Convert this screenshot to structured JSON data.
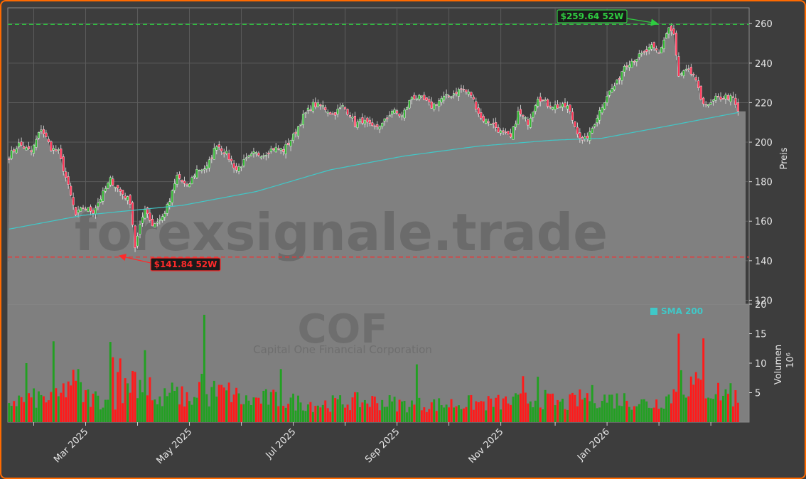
{
  "chart_data": {
    "type": "candlestick",
    "ticker": "COF",
    "company": "Capital One Financial Corporation",
    "watermark": "forexsignale.trade",
    "ylabel": "Preis",
    "volume_label": "Volumen",
    "volume_unit": "10⁶",
    "ylim": [
      118,
      268
    ],
    "y_ticks": [
      120,
      140,
      160,
      180,
      200,
      220,
      240,
      260
    ],
    "volume_ylim": [
      0,
      20
    ],
    "volume_ticks": [
      5,
      10,
      15,
      20
    ],
    "x_tick_labels": [
      "Mar 2025",
      "May 2025",
      "Jul 2025",
      "Sep 2025",
      "Nov 2025",
      "Jan 2026"
    ],
    "high_52w": {
      "value": 259.64,
      "label": "$259.64 52W",
      "color": "#2ecc40"
    },
    "low_52w": {
      "value": 141.84,
      "label": "$141.84 52W",
      "color": "#ff2a2a"
    },
    "legend": [
      {
        "name": "SMA 200",
        "color": "#40c8c8"
      }
    ],
    "close_anchors": [
      [
        0,
        193
      ],
      [
        4,
        199
      ],
      [
        9,
        195
      ],
      [
        13,
        207
      ],
      [
        17,
        197
      ],
      [
        20,
        195
      ],
      [
        23,
        182
      ],
      [
        27,
        163
      ],
      [
        30,
        167
      ],
      [
        34,
        165
      ],
      [
        38,
        174
      ],
      [
        41,
        181
      ],
      [
        45,
        175
      ],
      [
        49,
        170
      ],
      [
        51,
        147
      ],
      [
        53,
        157
      ],
      [
        55,
        167
      ],
      [
        58,
        158
      ],
      [
        62,
        162
      ],
      [
        65,
        170
      ],
      [
        68,
        183
      ],
      [
        72,
        177
      ],
      [
        76,
        186
      ],
      [
        80,
        187
      ],
      [
        84,
        199
      ],
      [
        88,
        194
      ],
      [
        92,
        186
      ],
      [
        95,
        190
      ],
      [
        99,
        194
      ],
      [
        103,
        194
      ],
      [
        107,
        197
      ],
      [
        111,
        196
      ],
      [
        115,
        203
      ],
      [
        119,
        213
      ],
      [
        123,
        219
      ],
      [
        127,
        218
      ],
      [
        131,
        214
      ],
      [
        135,
        218
      ],
      [
        138,
        214
      ],
      [
        140,
        209
      ],
      [
        143,
        211
      ],
      [
        147,
        207
      ],
      [
        151,
        209
      ],
      [
        155,
        216
      ],
      [
        159,
        213
      ],
      [
        163,
        223
      ],
      [
        167,
        222
      ],
      [
        171,
        218
      ],
      [
        175,
        222
      ],
      [
        179,
        224
      ],
      [
        183,
        227
      ],
      [
        187,
        224
      ],
      [
        191,
        212
      ],
      [
        195,
        210
      ],
      [
        199,
        205
      ],
      [
        203,
        202
      ],
      [
        206,
        215
      ],
      [
        210,
        210
      ],
      [
        214,
        223
      ],
      [
        218,
        219
      ],
      [
        222,
        218
      ],
      [
        226,
        218
      ],
      [
        229,
        208
      ],
      [
        232,
        200
      ],
      [
        235,
        204
      ],
      [
        238,
        213
      ],
      [
        242,
        224
      ],
      [
        246,
        230
      ],
      [
        249,
        239
      ],
      [
        253,
        242
      ],
      [
        257,
        245
      ],
      [
        260,
        248
      ],
      [
        263,
        245
      ],
      [
        265,
        252
      ],
      [
        267,
        258
      ],
      [
        269,
        254
      ],
      [
        271,
        233
      ],
      [
        274,
        236
      ],
      [
        277,
        234
      ],
      [
        280,
        222
      ],
      [
        283,
        218
      ],
      [
        286,
        222
      ],
      [
        290,
        223
      ],
      [
        293,
        222
      ],
      [
        295,
        215
      ]
    ],
    "sma_anchors": [
      [
        0,
        156
      ],
      [
        30,
        163
      ],
      [
        70,
        168
      ],
      [
        100,
        175
      ],
      [
        130,
        186
      ],
      [
        160,
        193
      ],
      [
        190,
        198
      ],
      [
        220,
        201
      ],
      [
        240,
        202
      ],
      [
        270,
        209
      ],
      [
        295,
        215
      ]
    ],
    "volume_anchors": [
      [
        0,
        3.5
      ],
      [
        10,
        4
      ],
      [
        20,
        4
      ],
      [
        25,
        7
      ],
      [
        30,
        4.5
      ],
      [
        40,
        3.5
      ],
      [
        45,
        4
      ],
      [
        50,
        8
      ],
      [
        55,
        6
      ],
      [
        60,
        3
      ],
      [
        65,
        5
      ],
      [
        72,
        4
      ],
      [
        80,
        4
      ],
      [
        85,
        5
      ],
      [
        90,
        5
      ],
      [
        95,
        3.5
      ],
      [
        105,
        4
      ],
      [
        115,
        3.5
      ],
      [
        125,
        3
      ],
      [
        140,
        3.5
      ],
      [
        150,
        3.5
      ],
      [
        160,
        3
      ],
      [
        175,
        3
      ],
      [
        185,
        3.2
      ],
      [
        195,
        3.2
      ],
      [
        205,
        3.5
      ],
      [
        215,
        4
      ],
      [
        225,
        3
      ],
      [
        235,
        4.5
      ],
      [
        240,
        4
      ],
      [
        250,
        3.8
      ],
      [
        260,
        3
      ],
      [
        268,
        4.5
      ],
      [
        272,
        6.5
      ],
      [
        280,
        6
      ],
      [
        288,
        5
      ],
      [
        295,
        4
      ]
    ],
    "volume_spikes": [
      [
        7,
        10
      ],
      [
        18,
        13.7
      ],
      [
        28,
        9
      ],
      [
        41,
        13.6
      ],
      [
        42,
        11
      ],
      [
        44,
        8.5
      ],
      [
        45,
        10.8
      ],
      [
        55,
        12.2
      ],
      [
        57,
        7.6
      ],
      [
        77,
        6.8
      ],
      [
        78,
        8.2
      ],
      [
        79,
        18.2
      ],
      [
        83,
        7
      ],
      [
        110,
        9
      ],
      [
        165,
        9.8
      ],
      [
        208,
        7.8
      ],
      [
        214,
        7.7
      ],
      [
        271,
        15
      ],
      [
        272,
        8.8
      ],
      [
        281,
        14.2
      ],
      [
        292,
        6.6
      ]
    ]
  }
}
